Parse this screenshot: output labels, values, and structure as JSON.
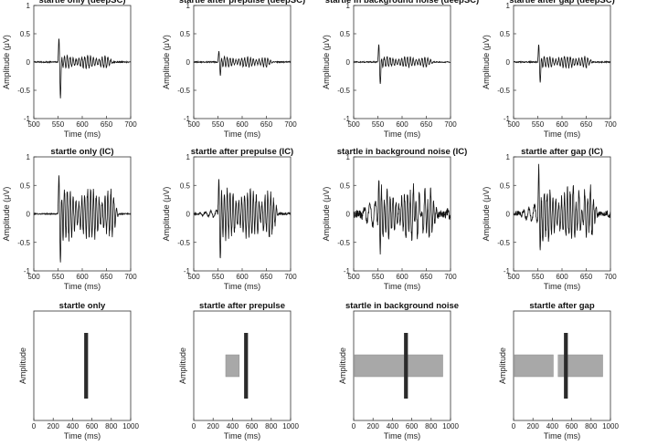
{
  "chart_data": [
    {
      "row": "deepSC",
      "type": "line",
      "xlabel": "Time (ms)",
      "ylabel": "Amplitude (μV)",
      "xlim": [
        500,
        700
      ],
      "ylim": [
        -1,
        1
      ],
      "xticks": [
        500,
        550,
        600,
        650,
        700
      ],
      "yticks": [
        -1,
        -0.5,
        0,
        0.5,
        1
      ],
      "panels": [
        {
          "title": "startle only (deepSC)",
          "onset_ms": 550,
          "peak": 0.42,
          "trough": -0.62,
          "burst": 0.13,
          "burst_end_ms": 650
        },
        {
          "title": "startle after prepulse (deepSC)",
          "onset_ms": 550,
          "peak": 0.18,
          "trough": -0.22,
          "burst": 0.1,
          "burst_end_ms": 650
        },
        {
          "title": "startle in background noise (deepSC)",
          "onset_ms": 550,
          "peak": 0.3,
          "trough": -0.38,
          "burst": 0.11,
          "burst_end_ms": 650
        },
        {
          "title": "startle after gap (deepSC)",
          "onset_ms": 550,
          "peak": 0.3,
          "trough": -0.35,
          "burst": 0.12,
          "burst_end_ms": 650
        }
      ]
    },
    {
      "row": "IC",
      "type": "line",
      "xlabel": "Time (ms)",
      "ylabel": "Amplitude (μV)",
      "xlim": [
        500,
        700
      ],
      "ylim": [
        -1,
        1
      ],
      "xticks": [
        500,
        550,
        600,
        650,
        700
      ],
      "yticks": [
        -1,
        -0.5,
        0,
        0.5,
        1
      ],
      "panels": [
        {
          "title": "startle only (IC)",
          "onset_ms": 550,
          "peak": 0.62,
          "trough": -0.78,
          "burst": 0.52,
          "burst_end_ms": 660,
          "pre_noise": 0.0
        },
        {
          "title": "startle after prepulse (IC)",
          "onset_ms": 550,
          "peak": 0.6,
          "trough": -0.72,
          "burst": 0.5,
          "burst_end_ms": 660,
          "pre_noise": 0.06
        },
        {
          "title": "startle in background noise (IC)",
          "onset_ms": 550,
          "peak": 0.75,
          "trough": -0.75,
          "burst": 0.45,
          "burst_end_ms": 660,
          "pre_noise": 0.22
        },
        {
          "title": "startle after gap (IC)",
          "onset_ms": 550,
          "peak": 0.75,
          "trough": -0.7,
          "burst": 0.5,
          "burst_end_ms": 660,
          "pre_noise": 0.15
        }
      ]
    },
    {
      "row": "stimulus-schematic",
      "type": "bar",
      "xlabel": "Time (ms)",
      "ylabel": "Amplitude",
      "xlim": [
        0,
        1000
      ],
      "ylim": [
        0,
        1
      ],
      "xticks": [
        0,
        200,
        400,
        600,
        800,
        1000
      ],
      "panels": [
        {
          "title": "startle only",
          "startle": {
            "start_ms": 520,
            "end_ms": 560,
            "low": 0.2,
            "high": 0.8
          },
          "background": []
        },
        {
          "title": "startle after prepulse",
          "startle": {
            "start_ms": 520,
            "end_ms": 560,
            "low": 0.2,
            "high": 0.8
          },
          "background": [
            {
              "start_ms": 330,
              "end_ms": 470,
              "low": 0.4,
              "high": 0.6
            }
          ]
        },
        {
          "title": "startle in background noise",
          "startle": {
            "start_ms": 520,
            "end_ms": 560,
            "low": 0.2,
            "high": 0.8
          },
          "background": [
            {
              "start_ms": 10,
              "end_ms": 920,
              "low": 0.4,
              "high": 0.6
            }
          ]
        },
        {
          "title": "startle after gap",
          "startle": {
            "start_ms": 520,
            "end_ms": 560,
            "low": 0.2,
            "high": 0.8
          },
          "background": [
            {
              "start_ms": 10,
              "end_ms": 410,
              "low": 0.4,
              "high": 0.6
            },
            {
              "start_ms": 460,
              "end_ms": 920,
              "low": 0.4,
              "high": 0.6
            }
          ]
        }
      ]
    }
  ]
}
